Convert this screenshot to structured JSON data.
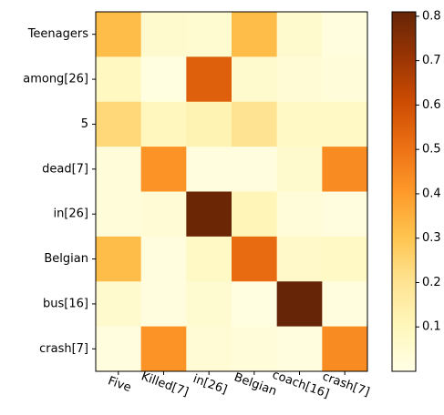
{
  "chart_data": {
    "type": "heatmap",
    "x_labels": [
      "Five",
      "Killed[7]",
      "in[26]",
      "Belgian",
      "coach[16]",
      "crash[7]"
    ],
    "y_labels": [
      "Teenagers",
      "among[26]",
      "5",
      "dead[7]",
      "in[26]",
      "Belgian",
      "bus[16]",
      "crash[7]"
    ],
    "values": [
      [
        0.32,
        0.06,
        0.05,
        0.32,
        0.06,
        0.02
      ],
      [
        0.09,
        0.01,
        0.55,
        0.06,
        0.04,
        0.03
      ],
      [
        0.24,
        0.1,
        0.12,
        0.2,
        0.08,
        0.08
      ],
      [
        0.03,
        0.42,
        0.02,
        0.02,
        0.06,
        0.44
      ],
      [
        0.03,
        0.04,
        0.8,
        0.11,
        0.03,
        0.02
      ],
      [
        0.32,
        0.02,
        0.08,
        0.52,
        0.07,
        0.08
      ],
      [
        0.06,
        0.02,
        0.05,
        0.01,
        0.81,
        0.02
      ],
      [
        0.02,
        0.42,
        0.04,
        0.03,
        0.02,
        0.44
      ]
    ],
    "colormap": "YlOrBr",
    "colorbar": {
      "min": 0.0,
      "max": 0.81,
      "ticks": [
        0.1,
        0.2,
        0.3,
        0.4,
        0.5,
        0.6,
        0.7,
        0.8
      ],
      "tick_labels": [
        "0.1",
        "0.2",
        "0.3",
        "0.4",
        "0.5",
        "0.6",
        "0.7",
        "0.8"
      ]
    },
    "x_tick_rotation_deg": 20,
    "grid": false
  }
}
